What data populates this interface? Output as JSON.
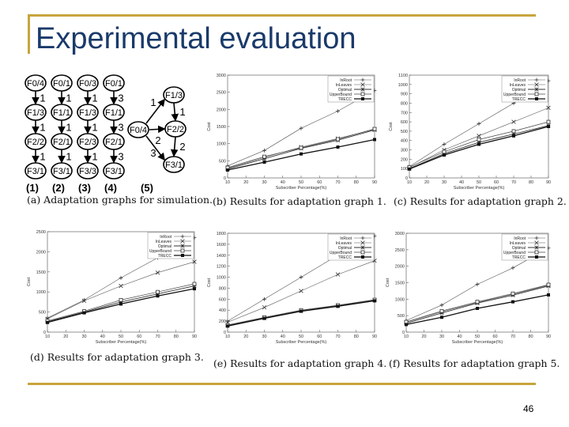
{
  "slide": {
    "title": "Experimental evaluation",
    "page_number": "46",
    "colors": {
      "title": "#1a3a6a",
      "rule": "#c8a53c"
    }
  },
  "graphs": {
    "caption": "(a) Adaptation graphs for simulation.",
    "columns": [
      {
        "label": "(1)",
        "nodes": [
          "F0/4",
          "F1/3",
          "F2/2",
          "F3/1"
        ],
        "edges": [
          "1",
          "1",
          "1"
        ]
      },
      {
        "label": "(2)",
        "nodes": [
          "F0/1",
          "F1/1",
          "F2/1",
          "F3/1"
        ],
        "edges": [
          "1",
          "1",
          "1"
        ]
      },
      {
        "label": "(3)",
        "nodes": [
          "F0/3",
          "F1/3",
          "F2/3",
          "F3/3"
        ],
        "edges": [
          "1",
          "1",
          "1"
        ]
      },
      {
        "label": "(4)",
        "nodes": [
          "F0/1",
          "F1/1",
          "F2/1",
          "F3/1"
        ],
        "edges": [
          "3",
          "3",
          "3"
        ]
      }
    ],
    "graph5": {
      "label": "(5)",
      "center": "F0/4",
      "nodes": [
        "F1/3",
        "F2/2",
        "F3/1"
      ],
      "edges": [
        "1",
        "2",
        "3",
        "1",
        "2"
      ]
    }
  },
  "chart_data": [
    {
      "type": "line",
      "caption": "(b) Results for adaptation graph 1.",
      "xlabel": "Subscriber Percentage(%)",
      "ylabel": "Cost",
      "x": [
        10,
        30,
        50,
        70,
        90
      ],
      "xticks": [
        "10",
        "20",
        "30",
        "40",
        "50",
        "60",
        "70",
        "80",
        "90"
      ],
      "ylim": [
        0,
        3000
      ],
      "yticks": [
        "0",
        "500",
        "1000",
        "1500",
        "2000",
        "2500",
        "3000"
      ],
      "legend_position": "top-right",
      "series": [
        {
          "name": "InRoot",
          "values": [
            350,
            800,
            1450,
            1950,
            2550
          ]
        },
        {
          "name": "InLeaves",
          "values": [
            280,
            600,
            900,
            1150,
            1420
          ]
        },
        {
          "name": "Optimal",
          "values": [
            260,
            560,
            860,
            1100,
            1400
          ]
        },
        {
          "name": "UpperBound",
          "values": [
            300,
            620,
            880,
            1130,
            1430
          ]
        },
        {
          "name": "TRECC",
          "values": [
            230,
            460,
            700,
            900,
            1120
          ]
        }
      ]
    },
    {
      "type": "line",
      "caption": "(c) Results for adaptation graph 2.",
      "xlabel": "Subscriber Percentage(%)",
      "ylabel": "Cost",
      "x": [
        10,
        30,
        50,
        70,
        90
      ],
      "xticks": [
        "10",
        "20",
        "30",
        "40",
        "50",
        "60",
        "70",
        "80",
        "90"
      ],
      "ylim": [
        0,
        1100
      ],
      "yticks": [
        "0",
        "100",
        "200",
        "300",
        "400",
        "500",
        "600",
        "700",
        "800",
        "900",
        "1000",
        "1100"
      ],
      "legend_position": "top-right",
      "series": [
        {
          "name": "InRoot",
          "values": [
            120,
            360,
            580,
            800,
            1040
          ]
        },
        {
          "name": "InLeaves",
          "values": [
            110,
            300,
            450,
            600,
            750
          ]
        },
        {
          "name": "Optimal",
          "values": [
            100,
            260,
            380,
            470,
            560
          ]
        },
        {
          "name": "UpperBound",
          "values": [
            115,
            280,
            410,
            500,
            600
          ]
        },
        {
          "name": "TRECC",
          "values": [
            95,
            245,
            360,
            450,
            550
          ]
        }
      ]
    },
    {
      "type": "line",
      "caption": "(d) Results for adaptation graph 3.",
      "xlabel": "Subscriber Percentage(%)",
      "ylabel": "Cost",
      "x": [
        10,
        30,
        50,
        70,
        90
      ],
      "xticks": [
        "10",
        "20",
        "30",
        "40",
        "50",
        "60",
        "70",
        "80",
        "90"
      ],
      "ylim": [
        0,
        2500
      ],
      "yticks": [
        "0",
        "500",
        "1000",
        "1500",
        "2000",
        "2500"
      ],
      "legend_position": "top-right",
      "series": [
        {
          "name": "InRoot",
          "values": [
            350,
            800,
            1350,
            1850,
            2350
          ]
        },
        {
          "name": "InLeaves",
          "values": [
            330,
            780,
            1150,
            1480,
            1750
          ]
        },
        {
          "name": "Optimal",
          "values": [
            260,
            500,
            750,
            950,
            1150
          ]
        },
        {
          "name": "UpperBound",
          "values": [
            280,
            520,
            800,
            1000,
            1200
          ]
        },
        {
          "name": "TRECC",
          "values": [
            240,
            480,
            700,
            900,
            1080
          ]
        }
      ]
    },
    {
      "type": "line",
      "caption": "(e) Results for adaptation graph 4.",
      "xlabel": "Subscriber Percentage(%)",
      "ylabel": "Cost",
      "x": [
        10,
        30,
        50,
        70,
        90
      ],
      "xticks": [
        "10",
        "20",
        "30",
        "40",
        "50",
        "60",
        "70",
        "80",
        "90"
      ],
      "ylim": [
        0,
        1800
      ],
      "yticks": [
        "0",
        "200",
        "400",
        "600",
        "800",
        "1000",
        "1200",
        "1400",
        "1600",
        "1800"
      ],
      "legend_position": "top-right",
      "series": [
        {
          "name": "InRoot",
          "values": [
            200,
            600,
            1000,
            1400,
            1750
          ]
        },
        {
          "name": "InLeaves",
          "values": [
            180,
            450,
            750,
            1050,
            1300
          ]
        },
        {
          "name": "Optimal",
          "values": [
            120,
            260,
            390,
            480,
            580
          ]
        },
        {
          "name": "UpperBound",
          "values": [
            130,
            270,
            400,
            490,
            590
          ]
        },
        {
          "name": "TRECC",
          "values": [
            110,
            250,
            380,
            470,
            570
          ]
        }
      ]
    },
    {
      "type": "line",
      "caption": "(f) Results for adaptation graph 5.",
      "xlabel": "Subscriber Percentage(%)",
      "ylabel": "Cost",
      "x": [
        10,
        30,
        50,
        70,
        90
      ],
      "xticks": [
        "10",
        "20",
        "30",
        "40",
        "50",
        "60",
        "70",
        "80",
        "90"
      ],
      "ylim": [
        0,
        3000
      ],
      "yticks": [
        "0",
        "500",
        "1000",
        "1500",
        "2000",
        "2500",
        "3000"
      ],
      "legend_position": "top-right",
      "series": [
        {
          "name": "InRoot",
          "values": [
            350,
            820,
            1450,
            1950,
            2550
          ]
        },
        {
          "name": "InLeaves",
          "values": [
            300,
            620,
            900,
            1150,
            1420
          ]
        },
        {
          "name": "Optimal",
          "values": [
            270,
            580,
            880,
            1120,
            1400
          ]
        },
        {
          "name": "UpperBound",
          "values": [
            310,
            640,
            920,
            1170,
            1440
          ]
        },
        {
          "name": "TRECC",
          "values": [
            230,
            450,
            720,
            920,
            1130
          ]
        }
      ]
    }
  ]
}
